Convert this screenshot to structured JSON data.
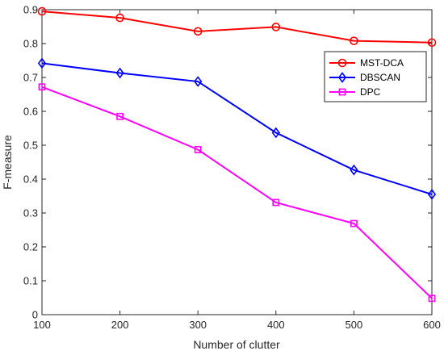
{
  "chart_data": {
    "type": "line",
    "title": "",
    "xlabel": "Number of clutter",
    "ylabel": "F-measure",
    "x": [
      100,
      200,
      300,
      400,
      500,
      600
    ],
    "xlim": [
      100,
      600
    ],
    "ylim": [
      0,
      0.9
    ],
    "xticks": [
      "100",
      "200",
      "300",
      "400",
      "500",
      "600"
    ],
    "yticks": [
      "0",
      "0.1",
      "0.2",
      "0.3",
      "0.4",
      "0.5",
      "0.6",
      "0.7",
      "0.8",
      "0.9"
    ],
    "grid": false,
    "legend_position": "top-right",
    "series": [
      {
        "name": "MST-DCA",
        "values": [
          0.895,
          0.876,
          0.836,
          0.849,
          0.808,
          0.803
        ],
        "color": "#ff0000",
        "marker": "circle"
      },
      {
        "name": "DBSCAN",
        "values": [
          0.742,
          0.713,
          0.688,
          0.537,
          0.427,
          0.355
        ],
        "color": "#0000ff",
        "marker": "diamond"
      },
      {
        "name": "DPC",
        "values": [
          0.672,
          0.585,
          0.487,
          0.331,
          0.269,
          0.048
        ],
        "color": "#ff00ff",
        "marker": "square"
      }
    ]
  }
}
